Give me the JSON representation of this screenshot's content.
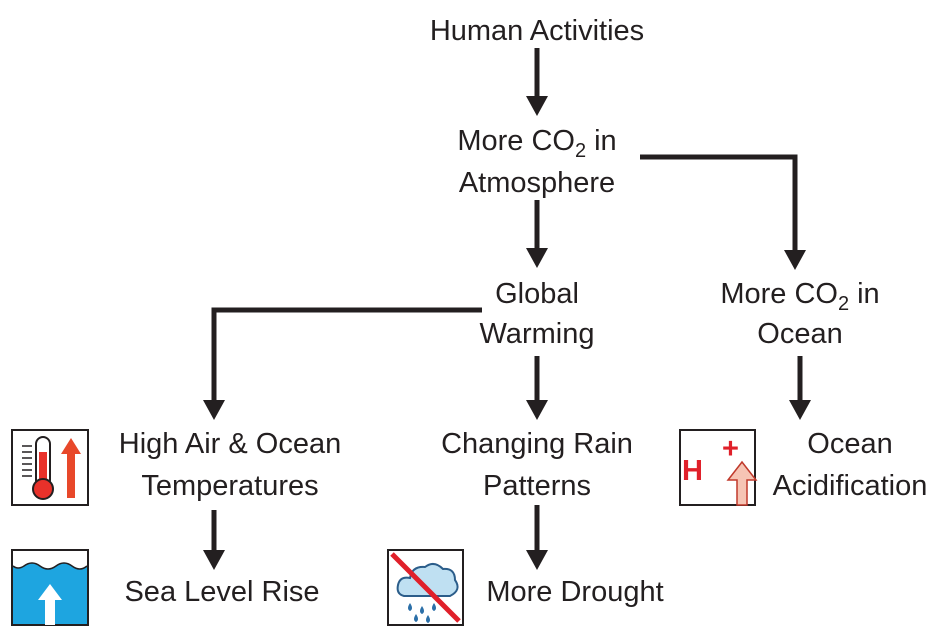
{
  "nodes": [
    {
      "line1": "Human Activities"
    },
    {
      "line1": {
        "text": "More CO",
        "subscript": "2",
        "rest": "in"
      },
      "line2": "Atmosphere"
    },
    {
      "line1": "Global",
      "line2": "Warming"
    },
    {
      "line1": {
        "text": "More CO",
        "subscript": "2",
        "rest": "in"
      },
      "line2": "Ocean"
    },
    {
      "line1": "High Air & Ocean",
      "line2": "Temperatures"
    },
    {
      "line1": "Changing Rain",
      "line2": "Patterns"
    },
    {
      "line1": "Ocean",
      "line2": "Acidification"
    },
    {
      "line1": "Sea Level Rise"
    },
    {
      "line1": "More Drought"
    }
  ],
  "acid_icon": {
    "symbol": "H",
    "charge": "+"
  }
}
